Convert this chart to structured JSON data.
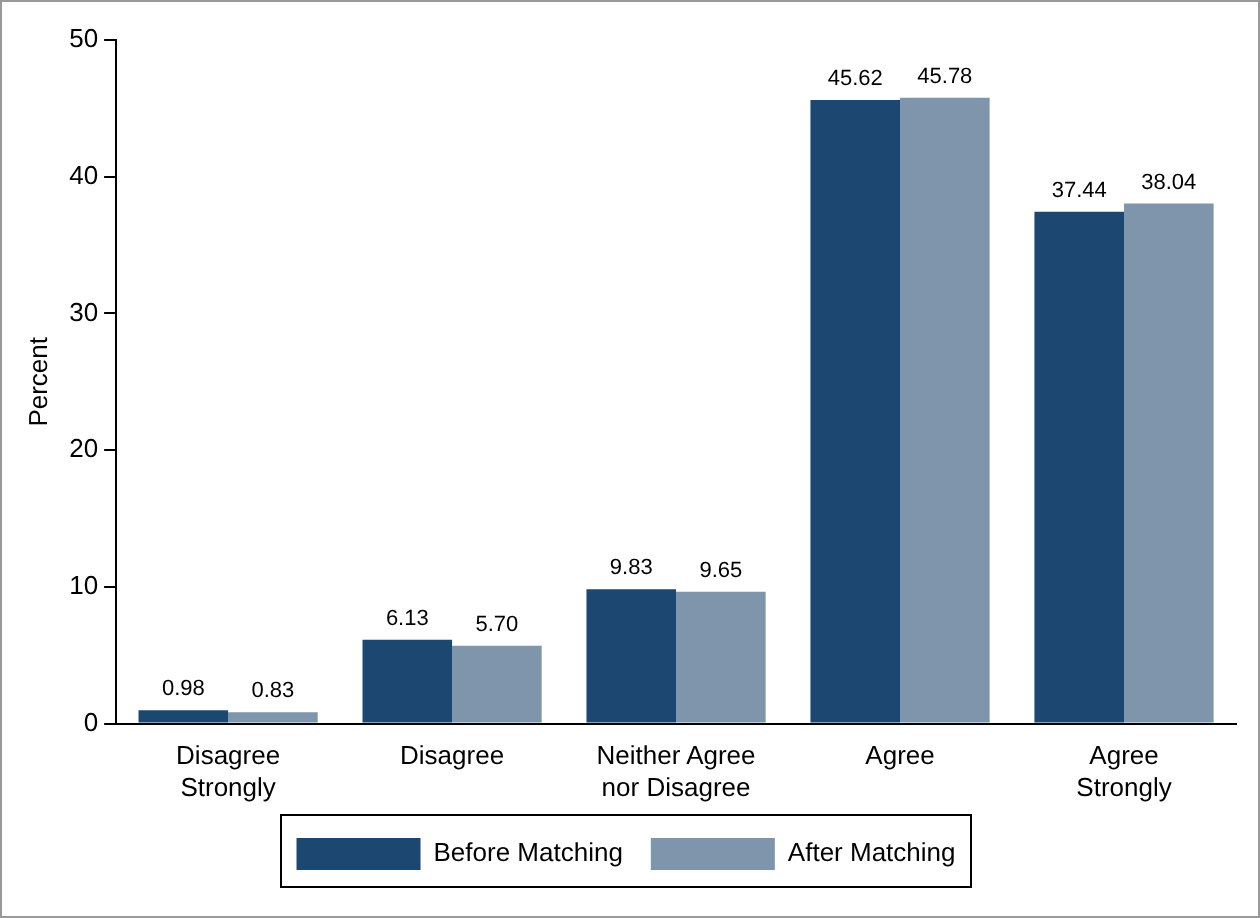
{
  "chart_data": {
    "type": "bar",
    "ylabel": "Percent",
    "categories": [
      "Disagree Strongly",
      "Disagree",
      "Neither Agree nor Disagree",
      "Agree",
      "Agree Strongly"
    ],
    "series": [
      {
        "name": "Before Matching",
        "color": "#1b4770",
        "values": [
          0.98,
          6.13,
          9.83,
          45.62,
          37.44
        ],
        "value_labels": [
          "0.98",
          "6.13",
          "9.83",
          "45.62",
          "37.44"
        ]
      },
      {
        "name": "After Matching",
        "color": "#7f95ab",
        "values": [
          0.83,
          5.7,
          9.65,
          45.78,
          38.04
        ],
        "value_labels": [
          "0.83",
          "5.70",
          "9.65",
          "45.78",
          "38.04"
        ]
      }
    ],
    "ylim": [
      0,
      50
    ],
    "yticks": [
      0,
      10,
      20,
      30,
      40,
      50
    ],
    "grid": false,
    "legend": "bottom"
  }
}
